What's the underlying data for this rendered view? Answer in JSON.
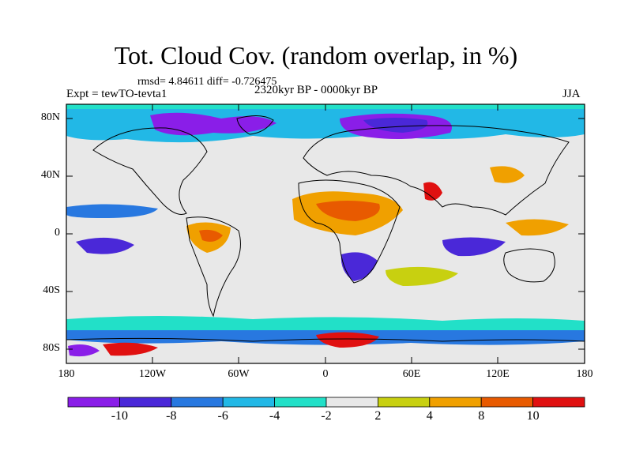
{
  "title": "Tot. Cloud Cov. (random overlap, in %)",
  "stats": "rmsd= 4.84611 diff= -0.726475",
  "experiment": "Expt = tewTO-tevta1",
  "period": "2320kyr BP - 0000kyr BP",
  "season": "JJA",
  "lat_labels": [
    "80N",
    "40N",
    "0",
    "40S",
    "80S"
  ],
  "lon_labels": [
    "180",
    "120W",
    "60W",
    "0",
    "60E",
    "120E",
    "180"
  ],
  "colorbar": {
    "labels": [
      "-10",
      "-8",
      "-6",
      "-4",
      "-2",
      "2",
      "4",
      "8",
      "10"
    ],
    "colors": [
      "#8a1ee8",
      "#4a28d8",
      "#2878e0",
      "#22b8e6",
      "#22e0c8",
      "#e8e8e8",
      "#c8d010",
      "#f0a000",
      "#e85a00",
      "#e01010"
    ]
  },
  "colors": {
    "coast": "#000000",
    "background": "#e8e8e8"
  }
}
